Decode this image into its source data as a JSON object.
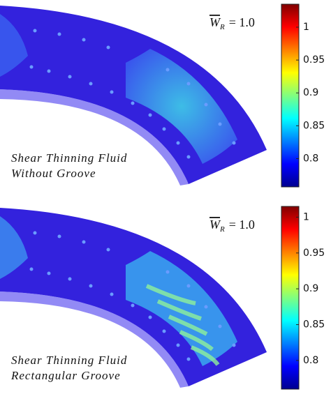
{
  "panels": [
    {
      "title": {
        "symbol": "W",
        "subscript": "R",
        "rest": "= 1.0"
      },
      "caption": [
        "Shear Thinning Fluid",
        "Without Groove"
      ],
      "colorbar": {
        "lim": [
          0.757,
          1.035
        ],
        "ticks": [
          0.8,
          0.85,
          0.9,
          0.95,
          1
        ]
      }
    },
    {
      "title": {
        "symbol": "W",
        "subscript": "R",
        "rest": "= 1.0"
      },
      "caption": [
        "Shear Thinning Fluid",
        "Rectangular Groove"
      ],
      "colorbar": {
        "lim": [
          0.76,
          1.015
        ],
        "ticks": [
          0.8,
          0.85,
          0.9,
          0.95,
          1
        ]
      }
    }
  ]
}
